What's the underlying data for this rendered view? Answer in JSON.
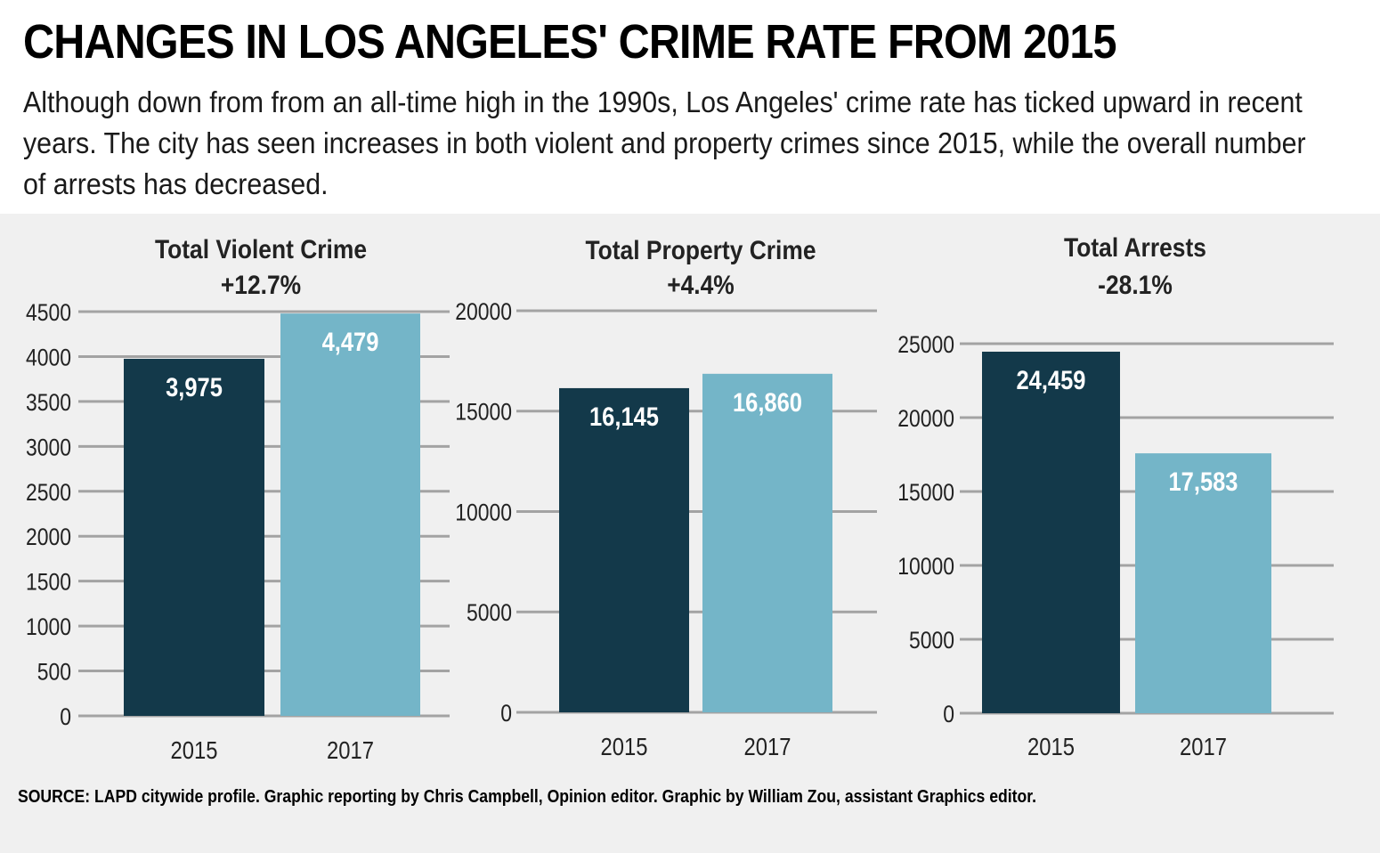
{
  "header": {
    "title": "CHANGES IN LOS ANGELES' CRIME RATE FROM 2015",
    "subtitle": "Although down from from an all-time high in the 1990s, Los Angeles' crime rate has ticked upward in recent years. The city has seen increases in both violent and property crimes since 2015, while the overall number of arrests has decreased."
  },
  "footer": {
    "source": "SOURCE: LAPD citywide profile. Graphic reporting by Chris Campbell, Opinion editor. Graphic by William Zou, assistant Graphics editor."
  },
  "colors": {
    "bar_2015": "#13394a",
    "bar_2017": "#74b5c8",
    "gridline": "#a3a3a3",
    "panel_background": "#f0f0f0"
  },
  "chart_data": [
    {
      "type": "bar",
      "title": "Total Violent Crime",
      "change": "+12.7%",
      "categories": [
        "2015",
        "2017"
      ],
      "values": [
        3975,
        4479
      ],
      "value_labels": [
        "3,975",
        "4,479"
      ],
      "ylim": [
        0,
        4500
      ],
      "yticks": [
        0,
        500,
        1000,
        1500,
        2000,
        2500,
        3000,
        3500,
        4000,
        4500
      ],
      "xlabel": "",
      "ylabel": "",
      "grid": true
    },
    {
      "type": "bar",
      "title": "Total Property Crime",
      "change": "+4.4%",
      "categories": [
        "2015",
        "2017"
      ],
      "values": [
        16145,
        16860
      ],
      "value_labels": [
        "16,145",
        "16,860"
      ],
      "ylim": [
        0,
        20000
      ],
      "yticks": [
        0,
        5000,
        10000,
        15000,
        20000
      ],
      "xlabel": "",
      "ylabel": "",
      "grid": true
    },
    {
      "type": "bar",
      "title": "Total Arrests",
      "change": "-28.1%",
      "categories": [
        "2015",
        "2017"
      ],
      "values": [
        24459,
        17583
      ],
      "value_labels": [
        "24,459",
        "17,583"
      ],
      "ylim": [
        0,
        25000
      ],
      "yticks": [
        0,
        5000,
        10000,
        15000,
        20000,
        25000
      ],
      "xlabel": "",
      "ylabel": "",
      "grid": true
    }
  ]
}
